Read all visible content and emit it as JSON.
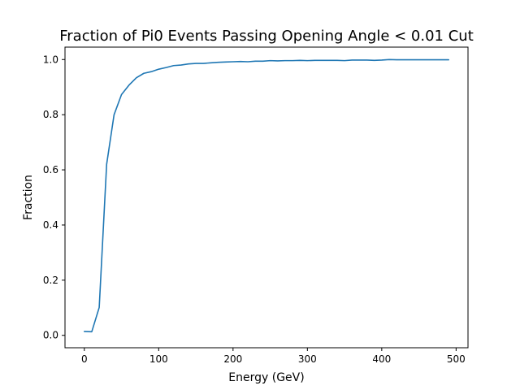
{
  "chart_data": {
    "type": "line",
    "title": "Fraction of Pi0 Events Passing Opening Angle < 0.01 Cut",
    "xlabel": "Energy (GeV)",
    "ylabel": "Fraction",
    "xlim": [
      -26,
      516
    ],
    "ylim": [
      -0.045,
      1.045
    ],
    "xticks": [
      0,
      100,
      200,
      300,
      400,
      500
    ],
    "xtick_labels": [
      "0",
      "100",
      "200",
      "300",
      "400",
      "500"
    ],
    "yticks": [
      0.0,
      0.2,
      0.4,
      0.6,
      0.8,
      1.0
    ],
    "ytick_labels": [
      "0.0",
      "0.2",
      "0.4",
      "0.6",
      "0.8",
      "1.0"
    ],
    "grid": false,
    "series": [
      {
        "color": "#1f77b4",
        "x": [
          0,
          10,
          20,
          30,
          40,
          50,
          60,
          70,
          80,
          90,
          100,
          110,
          120,
          130,
          140,
          150,
          160,
          170,
          180,
          190,
          200,
          210,
          220,
          230,
          240,
          250,
          260,
          270,
          280,
          290,
          300,
          310,
          320,
          330,
          340,
          350,
          360,
          370,
          380,
          390,
          400,
          410,
          420,
          430,
          440,
          450,
          460,
          470,
          480,
          490
        ],
        "y": [
          0.014,
          0.013,
          0.101,
          0.62,
          0.8,
          0.873,
          0.907,
          0.934,
          0.95,
          0.956,
          0.965,
          0.971,
          0.978,
          0.98,
          0.984,
          0.986,
          0.986,
          0.988,
          0.99,
          0.991,
          0.992,
          0.993,
          0.992,
          0.994,
          0.994,
          0.996,
          0.995,
          0.996,
          0.996,
          0.997,
          0.996,
          0.997,
          0.997,
          0.997,
          0.997,
          0.996,
          0.998,
          0.998,
          0.998,
          0.997,
          0.998,
          1.0,
          0.999,
          0.999,
          0.999,
          0.999,
          0.999,
          0.999,
          0.999,
          0.999
        ]
      }
    ]
  }
}
